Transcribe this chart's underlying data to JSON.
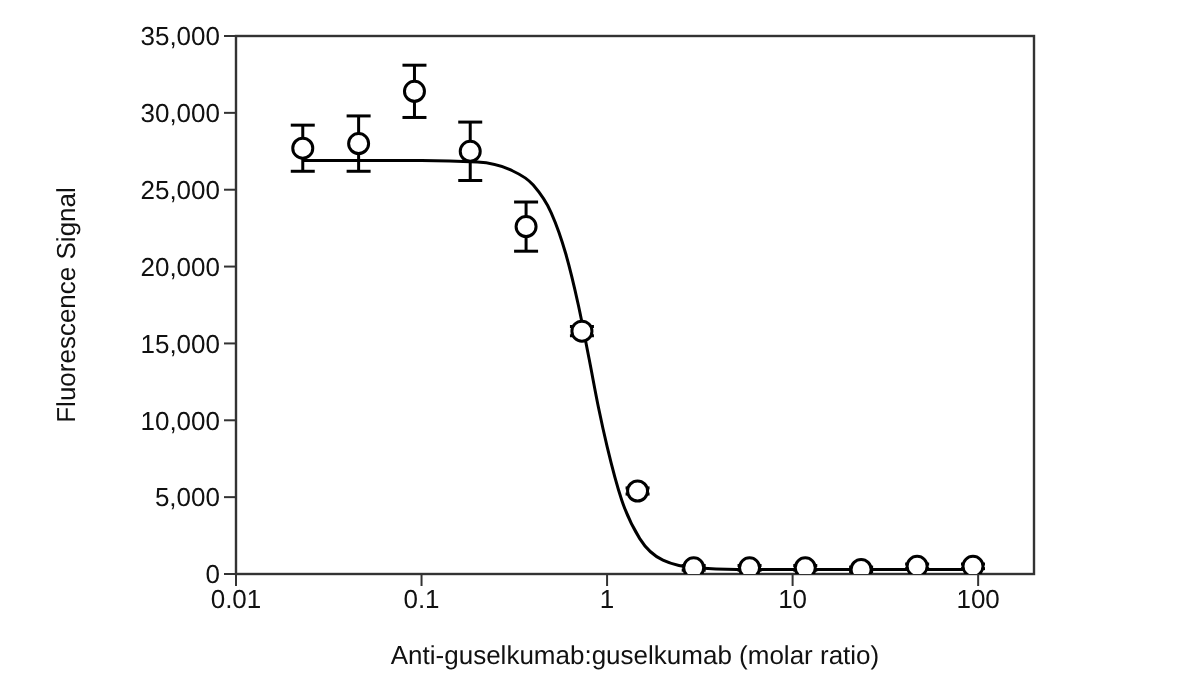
{
  "chart_data": {
    "type": "scatter",
    "xlabel": "Anti-guselkumab:guselkumab (molar ratio)",
    "ylabel": "Fluorescence Signal",
    "log": "x",
    "xlim": [
      0.01,
      200
    ],
    "xticks": [
      0.01,
      0.1,
      1,
      10,
      100
    ],
    "ylim": [
      0,
      35000
    ],
    "yticks": [
      {
        "value": 0,
        "label": "0"
      },
      {
        "value": 5000,
        "label": "5,000"
      },
      {
        "value": 10000,
        "label": "10,000"
      },
      {
        "value": 15000,
        "label": "15,000"
      },
      {
        "value": 20000,
        "label": "20,000"
      },
      {
        "value": 25000,
        "label": "25,000"
      },
      {
        "value": 30000,
        "label": "30,000"
      },
      {
        "value": 35000,
        "label": "35,000"
      }
    ],
    "grid": false,
    "legend": false,
    "marker": "circle",
    "series": [
      {
        "color": "#000000",
        "x": [
          0.0229,
          0.0458,
          0.0916,
          0.183,
          0.366,
          0.732,
          1.46,
          2.93,
          5.86,
          11.7,
          23.4,
          46.9,
          93.8
        ],
        "values": [
          27700,
          28000,
          31400,
          27500,
          22600,
          15800,
          5400,
          400,
          400,
          400,
          300,
          500,
          500
        ],
        "errors": [
          1500,
          1800,
          1700,
          1900,
          1600,
          300,
          200,
          150,
          150,
          150,
          150,
          150,
          150
        ]
      },
      {
        "type": "line",
        "color": "#000000",
        "marker": "none",
        "line_style": "solid",
        "x": [
          0.0229,
          0.1,
          0.2,
          0.3,
          0.4,
          0.5,
          0.6,
          0.7,
          0.8,
          0.9,
          1.0,
          1.2,
          1.5,
          2,
          3,
          5,
          93.8
        ],
        "values": [
          26900,
          26900,
          26800,
          26300,
          25300,
          23500,
          20800,
          17500,
          14000,
          10800,
          8300,
          4800,
          2300,
          900,
          400,
          300,
          300
        ]
      }
    ]
  }
}
